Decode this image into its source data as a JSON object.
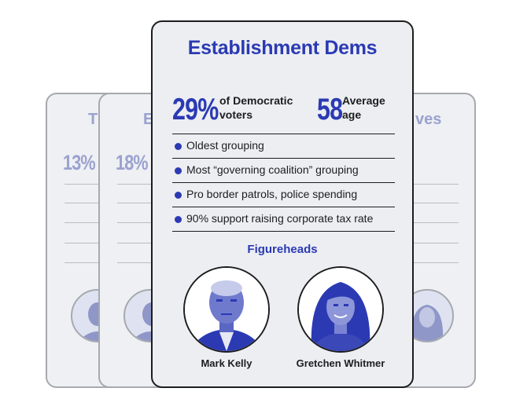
{
  "back_cards": [
    {
      "title_fragment": "T",
      "percent": "13%"
    },
    {
      "title_fragment": "E",
      "percent": "18%"
    },
    {
      "title_fragment": "ves"
    }
  ],
  "front_card": {
    "title": "Establishment Dems",
    "share": {
      "value": "29%",
      "label_line1": "of Democratic",
      "label_line2": "voters"
    },
    "age": {
      "value": "58",
      "label_line1": "Average",
      "label_line2": "age"
    },
    "bullets": [
      "Oldest grouping",
      "Most “governing coalition” grouping",
      "Pro border patrols, police spending",
      "90% support raising corporate tax rate"
    ],
    "figureheads_heading": "Figureheads",
    "figureheads": [
      {
        "name": "Mark Kelly",
        "icon": "portrait-photo"
      },
      {
        "name": "Gretchen Whitmer",
        "icon": "portrait-photo"
      }
    ]
  },
  "colors": {
    "accent_blue": "#2b3ab3",
    "faded_blue": "#9ba2ce",
    "card_bg": "#eef0f4",
    "ink": "#1d1d1f"
  }
}
